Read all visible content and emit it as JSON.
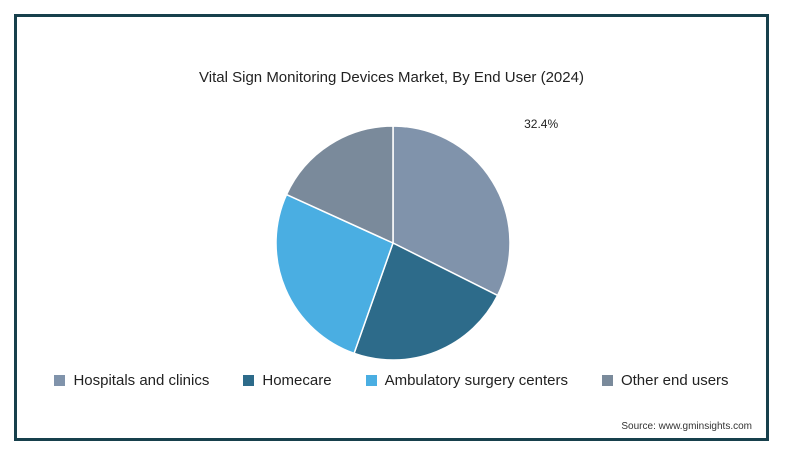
{
  "chart_data": {
    "type": "pie",
    "title": "Vital Sign Monitoring Devices Market, By End User (2024)",
    "slices": [
      {
        "name": "Hospitals and clinics",
        "value": 32.4,
        "label": "32.4%",
        "color": "#8093ab"
      },
      {
        "name": "Homecare",
        "value": 23.0,
        "label": "",
        "color": "#2d6b8a"
      },
      {
        "name": "Ambulatory surgery centers",
        "value": 26.4,
        "label": "",
        "color": "#4aaee2"
      },
      {
        "name": "Other end users",
        "value": 18.2,
        "label": "",
        "color": "#7a8a9b"
      }
    ],
    "legend_position": "bottom"
  },
  "source": "Source: www.gminsights.com",
  "colors": {
    "border": "#17404c"
  }
}
